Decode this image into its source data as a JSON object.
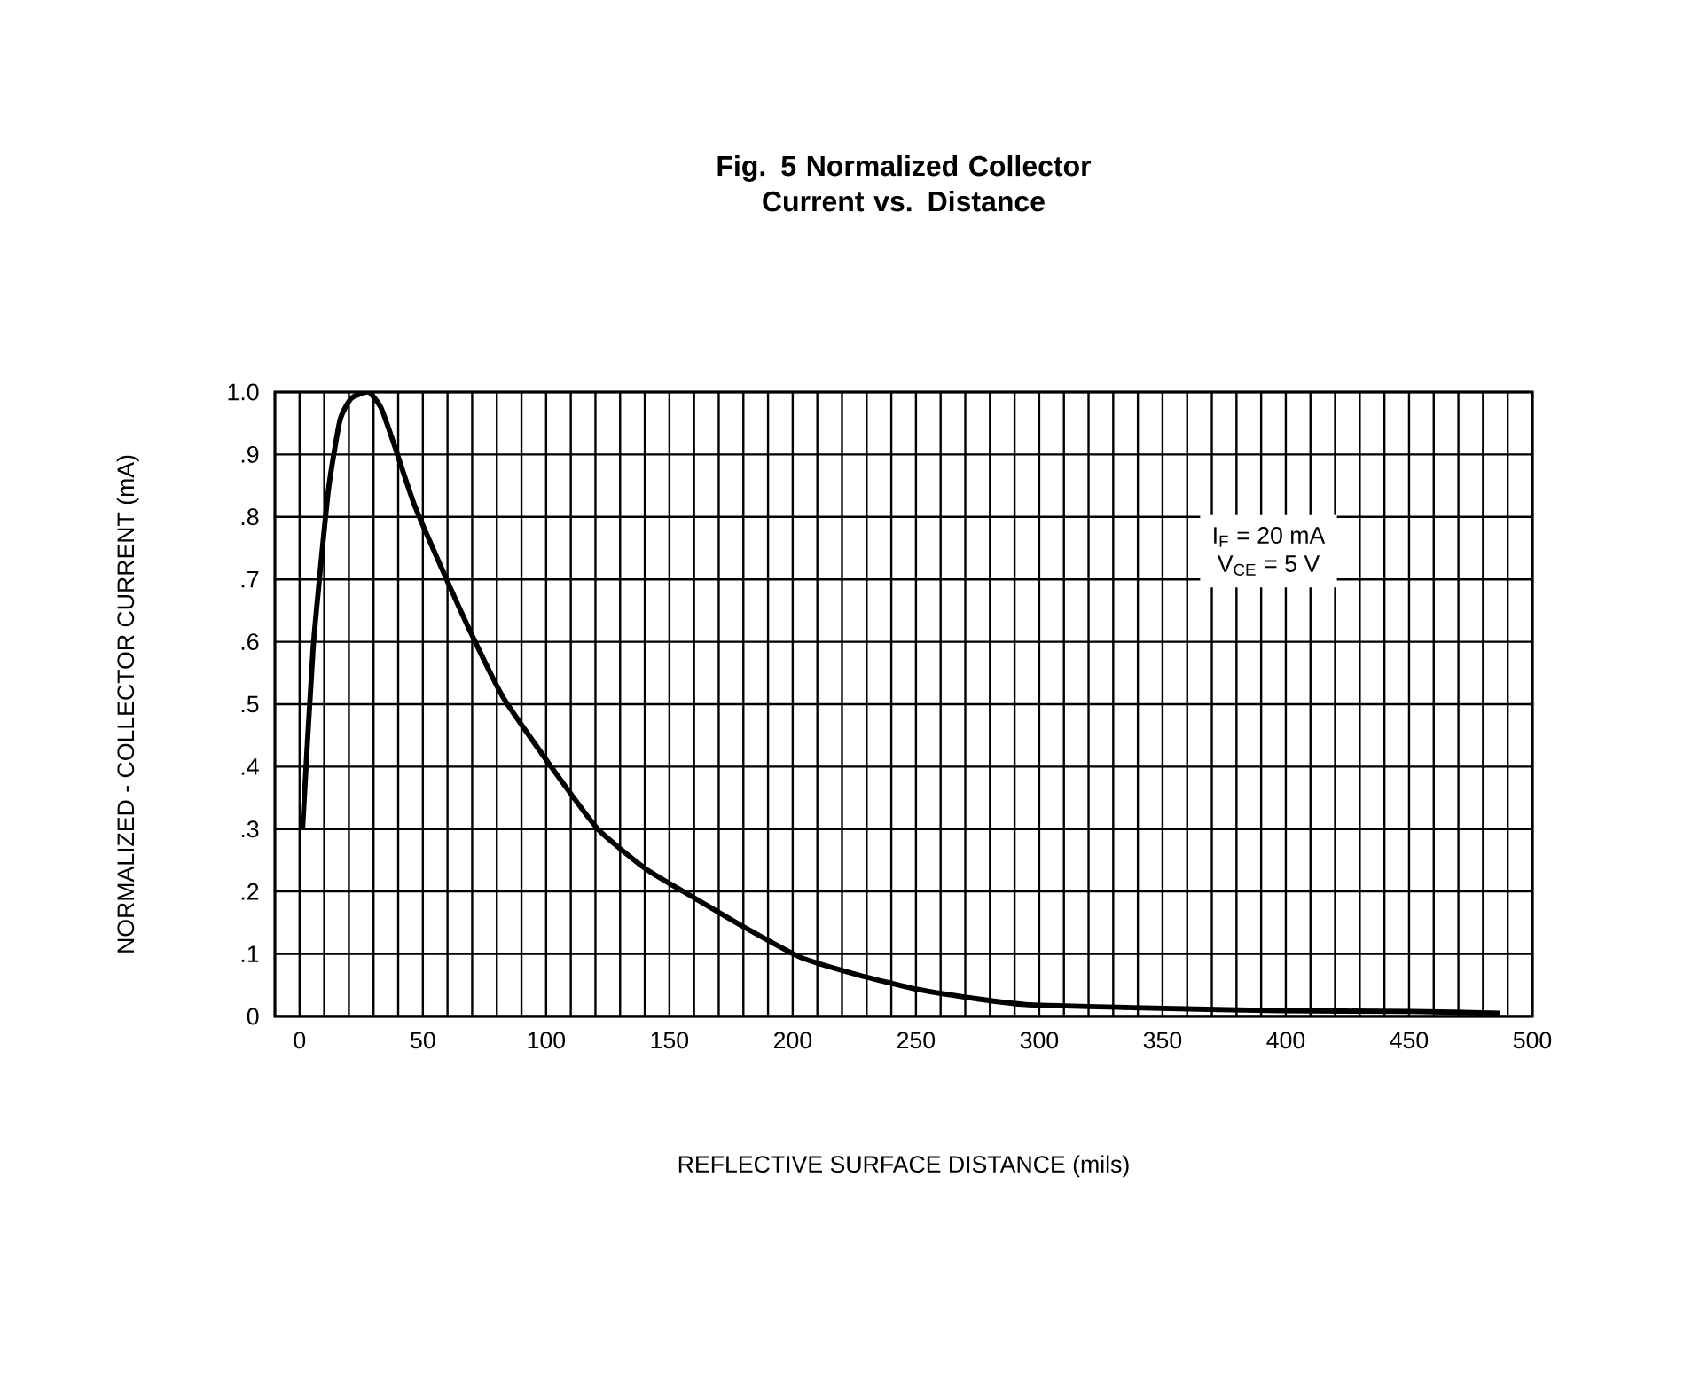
{
  "chart_data": {
    "type": "line",
    "title": "Fig. 5  Normalized Collector Current vs. Distance",
    "xlabel": "REFLECTIVE SURFACE DISTANCE (mils)",
    "ylabel": "NORMALIZED - COLLECTOR CURRENT (mA)",
    "annotations": [
      "I$_{F}$ = 20 mA",
      "V$_{CE}$ = 5 V"
    ],
    "x": [
      1.2,
      5.5,
      11.6,
      16.4,
      21,
      28,
      33,
      38,
      46.5,
      58.5,
      70.6,
      82.7,
      102,
      121,
      140.5,
      160,
      179,
      203,
      227,
      251,
      275,
      294.5,
      338,
      398,
      451,
      487
    ],
    "series": [
      {
        "color": "#000000",
        "values": [
          0.3,
          0.59,
          0.84,
          0.955,
          0.99,
          1.0,
          0.975,
          0.92,
          0.82,
          0.71,
          0.605,
          0.51,
          0.4,
          0.3,
          0.236,
          0.19,
          0.146,
          0.095,
          0.066,
          0.043,
          0.028,
          0.019,
          0.014,
          0.009,
          0.008,
          0.005
        ]
      }
    ],
    "xlim": [
      -10,
      500
    ],
    "ylim": [
      0,
      1
    ],
    "xticks": [
      0,
      {
        "value": 10,
        "label": null
      },
      {
        "value": 20,
        "label": null
      },
      {
        "value": 30,
        "label": null
      },
      {
        "value": 40,
        "label": null
      },
      50,
      {
        "value": 60,
        "label": null
      },
      {
        "value": 70,
        "label": null
      },
      {
        "value": 80,
        "label": null
      },
      {
        "value": 90,
        "label": null
      },
      100,
      {
        "value": 110,
        "label": null
      },
      {
        "value": 120,
        "label": null
      },
      {
        "value": 130,
        "label": null
      },
      {
        "value": 140,
        "label": null
      },
      150,
      {
        "value": 160,
        "label": null
      },
      {
        "value": 170,
        "label": null
      },
      {
        "value": 180,
        "label": null
      },
      {
        "value": 190,
        "label": null
      },
      200,
      {
        "value": 210,
        "label": null
      },
      {
        "value": 220,
        "label": null
      },
      {
        "value": 230,
        "label": null
      },
      {
        "value": 240,
        "label": null
      },
      250,
      {
        "value": 260,
        "label": null
      },
      {
        "value": 270,
        "label": null
      },
      {
        "value": 280,
        "label": null
      },
      {
        "value": 290,
        "label": null
      },
      300,
      {
        "value": 310,
        "label": null
      },
      {
        "value": 320,
        "label": null
      },
      {
        "value": 330,
        "label": null
      },
      {
        "value": 340,
        "label": null
      },
      350,
      {
        "value": 360,
        "label": null
      },
      {
        "value": 370,
        "label": null
      },
      {
        "value": 380,
        "label": null
      },
      {
        "value": 390,
        "label": null
      },
      400,
      {
        "value": 410,
        "label": null
      },
      {
        "value": 420,
        "label": null
      },
      {
        "value": 430,
        "label": null
      },
      {
        "value": 440,
        "label": null
      },
      450,
      {
        "value": 460,
        "label": null
      },
      {
        "value": 470,
        "label": null
      },
      {
        "value": 480,
        "label": null
      },
      {
        "value": 490,
        "label": null
      },
      500
    ],
    "yticks": [
      0,
      {
        "value": 0.1,
        "label": ".1"
      },
      {
        "value": 0.2,
        "label": ".2"
      },
      {
        "value": 0.3,
        "label": ".3"
      },
      {
        "value": 0.4,
        "label": ".4"
      },
      {
        "value": 0.5,
        "label": ".5"
      },
      {
        "value": 0.6,
        "label": ".6"
      },
      {
        "value": 0.7,
        "label": ".7"
      },
      {
        "value": 0.8,
        "label": ".8"
      },
      {
        "value": 0.9,
        "label": ".9"
      },
      {
        "value": 1,
        "label": "1.0"
      }
    ],
    "grid": true,
    "marker": "none",
    "line_style": "solid"
  }
}
